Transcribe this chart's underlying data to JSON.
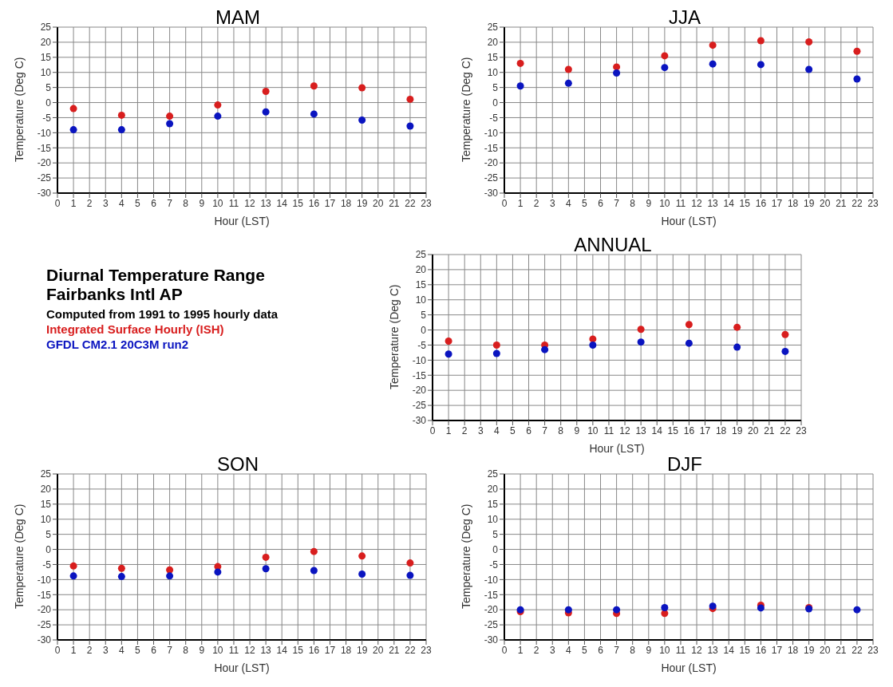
{
  "chart_data": [
    {
      "type": "scatter",
      "title": "MAM",
      "xlabel": "Hour (LST)",
      "ylabel": "Temperature (Deg C)",
      "x": [
        1,
        4,
        7,
        10,
        13,
        16,
        19,
        22
      ],
      "xlim": [
        0,
        23
      ],
      "xticks": [
        0,
        1,
        2,
        3,
        4,
        5,
        6,
        7,
        8,
        9,
        10,
        11,
        12,
        13,
        14,
        15,
        16,
        17,
        18,
        19,
        20,
        21,
        22,
        23
      ],
      "ylim": [
        -30,
        25
      ],
      "yticks": [
        -30,
        -25,
        -20,
        -15,
        -10,
        -5,
        0,
        5,
        10,
        15,
        20,
        25
      ],
      "grid": true,
      "legend": false,
      "marker": "circle",
      "series": [
        {
          "color": "#d81e1e",
          "values": [
            -2,
            -4.2,
            -4.5,
            -0.8,
            3.7,
            5.5,
            4.9,
            1.1
          ]
        },
        {
          "color": "#0a14c0",
          "values": [
            -9,
            -9,
            -7,
            -4.5,
            -3.1,
            -3.8,
            -5.8,
            -7.8
          ]
        }
      ]
    },
    {
      "type": "scatter",
      "title": "JJA",
      "xlabel": "Hour (LST)",
      "ylabel": "Temperature (Deg C)",
      "x": [
        1,
        4,
        7,
        10,
        13,
        16,
        19,
        22
      ],
      "xlim": [
        0,
        23
      ],
      "xticks": [
        0,
        1,
        2,
        3,
        4,
        5,
        6,
        7,
        8,
        9,
        10,
        11,
        12,
        13,
        14,
        15,
        16,
        17,
        18,
        19,
        20,
        21,
        22,
        23
      ],
      "ylim": [
        -30,
        25
      ],
      "yticks": [
        -30,
        -25,
        -20,
        -15,
        -10,
        -5,
        0,
        5,
        10,
        15,
        20,
        25
      ],
      "grid": true,
      "legend": false,
      "marker": "circle",
      "series": [
        {
          "color": "#d81e1e",
          "values": [
            13,
            11,
            11.8,
            15.5,
            19,
            20.5,
            20.1,
            17
          ]
        },
        {
          "color": "#0a14c0",
          "values": [
            5.5,
            6.4,
            9.8,
            11.6,
            12.8,
            12.6,
            11,
            7.8
          ]
        }
      ]
    },
    {
      "type": "other",
      "title": "Diurnal Temperature Range",
      "subtitle": "Fairbanks Intl AP",
      "annotations": [
        "Computed from 1991 to 1995 hourly data"
      ],
      "series": [
        {
          "name": "Integrated Surface Hourly (ISH)",
          "color": "#d81e1e"
        },
        {
          "name": "GFDL CM2.1 20C3M run2",
          "color": "#0a14c0"
        }
      ]
    },
    {
      "type": "scatter",
      "title": "ANNUAL",
      "xlabel": "Hour (LST)",
      "ylabel": "Temperature (Deg C)",
      "x": [
        1,
        4,
        7,
        10,
        13,
        16,
        19,
        22
      ],
      "xlim": [
        0,
        23
      ],
      "xticks": [
        0,
        1,
        2,
        3,
        4,
        5,
        6,
        7,
        8,
        9,
        10,
        11,
        12,
        13,
        14,
        15,
        16,
        17,
        18,
        19,
        20,
        21,
        22,
        23
      ],
      "ylim": [
        -30,
        25
      ],
      "yticks": [
        -30,
        -25,
        -20,
        -15,
        -10,
        -5,
        0,
        5,
        10,
        15,
        20,
        25
      ],
      "grid": true,
      "legend": false,
      "marker": "circle",
      "series": [
        {
          "color": "#d81e1e",
          "values": [
            -3.7,
            -5,
            -5,
            -3,
            0.2,
            1.8,
            0.9,
            -1.5
          ]
        },
        {
          "color": "#0a14c0",
          "values": [
            -8,
            -7.8,
            -6.5,
            -5,
            -4,
            -4.4,
            -5.7,
            -7.1
          ]
        }
      ]
    },
    {
      "type": "scatter",
      "title": "SON",
      "xlabel": "Hour (LST)",
      "ylabel": "Temperature (Deg C)",
      "x": [
        1,
        4,
        7,
        10,
        13,
        16,
        19,
        22
      ],
      "xlim": [
        0,
        23
      ],
      "xticks": [
        0,
        1,
        2,
        3,
        4,
        5,
        6,
        7,
        8,
        9,
        10,
        11,
        12,
        13,
        14,
        15,
        16,
        17,
        18,
        19,
        20,
        21,
        22,
        23
      ],
      "ylim": [
        -30,
        25
      ],
      "yticks": [
        -30,
        -25,
        -20,
        -15,
        -10,
        -5,
        0,
        5,
        10,
        15,
        20,
        25
      ],
      "grid": true,
      "legend": false,
      "marker": "circle",
      "series": [
        {
          "color": "#d81e1e",
          "values": [
            -5.5,
            -6.3,
            -6.8,
            -5.7,
            -2.6,
            -0.7,
            -2.2,
            -4.5
          ]
        },
        {
          "color": "#0a14c0",
          "values": [
            -8.8,
            -9,
            -8.8,
            -7.5,
            -6.4,
            -7,
            -8.2,
            -8.6
          ]
        }
      ]
    },
    {
      "type": "scatter",
      "title": "DJF",
      "xlabel": "Hour (LST)",
      "ylabel": "Temperature (Deg C)",
      "x": [
        1,
        4,
        7,
        10,
        13,
        16,
        19,
        22
      ],
      "xlim": [
        0,
        23
      ],
      "xticks": [
        0,
        1,
        2,
        3,
        4,
        5,
        6,
        7,
        8,
        9,
        10,
        11,
        12,
        13,
        14,
        15,
        16,
        17,
        18,
        19,
        20,
        21,
        22,
        23
      ],
      "ylim": [
        -30,
        25
      ],
      "yticks": [
        -30,
        -25,
        -20,
        -15,
        -10,
        -5,
        0,
        5,
        10,
        15,
        20,
        25
      ],
      "grid": true,
      "legend": false,
      "marker": "circle",
      "series": [
        {
          "color": "#d81e1e",
          "values": [
            -20.6,
            -21,
            -21.2,
            -21.2,
            -19.6,
            -18.5,
            -19.3,
            null
          ]
        },
        {
          "color": "#0a14c0",
          "values": [
            -20,
            -20,
            -20,
            -19.3,
            -18.8,
            -19.4,
            -19.7,
            -20
          ]
        }
      ]
    }
  ]
}
